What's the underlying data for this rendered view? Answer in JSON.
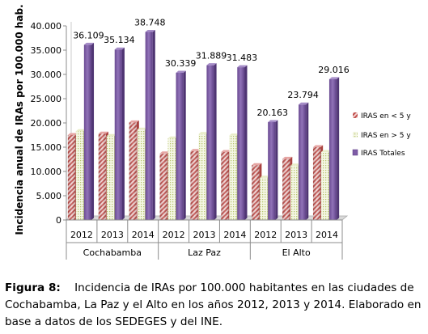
{
  "chart_data": {
    "type": "bar",
    "ylabel": "Incidencia anual de IRAs por 100.000 hab.",
    "ylim": [
      0,
      40000
    ],
    "yticks": [
      "0",
      "5.000",
      "10.000",
      "15.000",
      "20.000",
      "25.000",
      "30.000",
      "35.000",
      "40.000"
    ],
    "groups": [
      "Cochabamba",
      "Laz Paz",
      "El Alto"
    ],
    "years": [
      "2012",
      "2013",
      "2014"
    ],
    "legend_position": "right",
    "series": [
      {
        "name": "IRAS en < 5 y",
        "color": "#c0504d",
        "pattern": "diagonal-red",
        "values": [
          17500,
          17800,
          20100,
          13700,
          14200,
          14000,
          11300,
          12600,
          15000
        ]
      },
      {
        "name": "IRAS en > 5 y",
        "color": "#c8d38c",
        "pattern": "dots-olive",
        "values": [
          18300,
          17300,
          18600,
          16800,
          17700,
          17400,
          8700,
          11200,
          14000
        ]
      },
      {
        "name": "IRAS Totales",
        "color": "#7e5ca6",
        "pattern": "solid",
        "values": [
          36109,
          35134,
          38748,
          30339,
          31889,
          31483,
          20163,
          23794,
          29016
        ],
        "labels": [
          "36.109",
          "35.134",
          "38.748",
          "30.339",
          "31.889",
          "31.483",
          "20.163",
          "23.794",
          "29.016"
        ]
      }
    ]
  },
  "caption": {
    "label": "Figura 8:",
    "text": "Incidencia de IRAs por 100.000 habitantes en las ciudades de Cochabamba, La Paz y el Alto en los años 2012, 2013 y 2014. Elaborado en base a datos de los SEDEGES y del INE."
  }
}
